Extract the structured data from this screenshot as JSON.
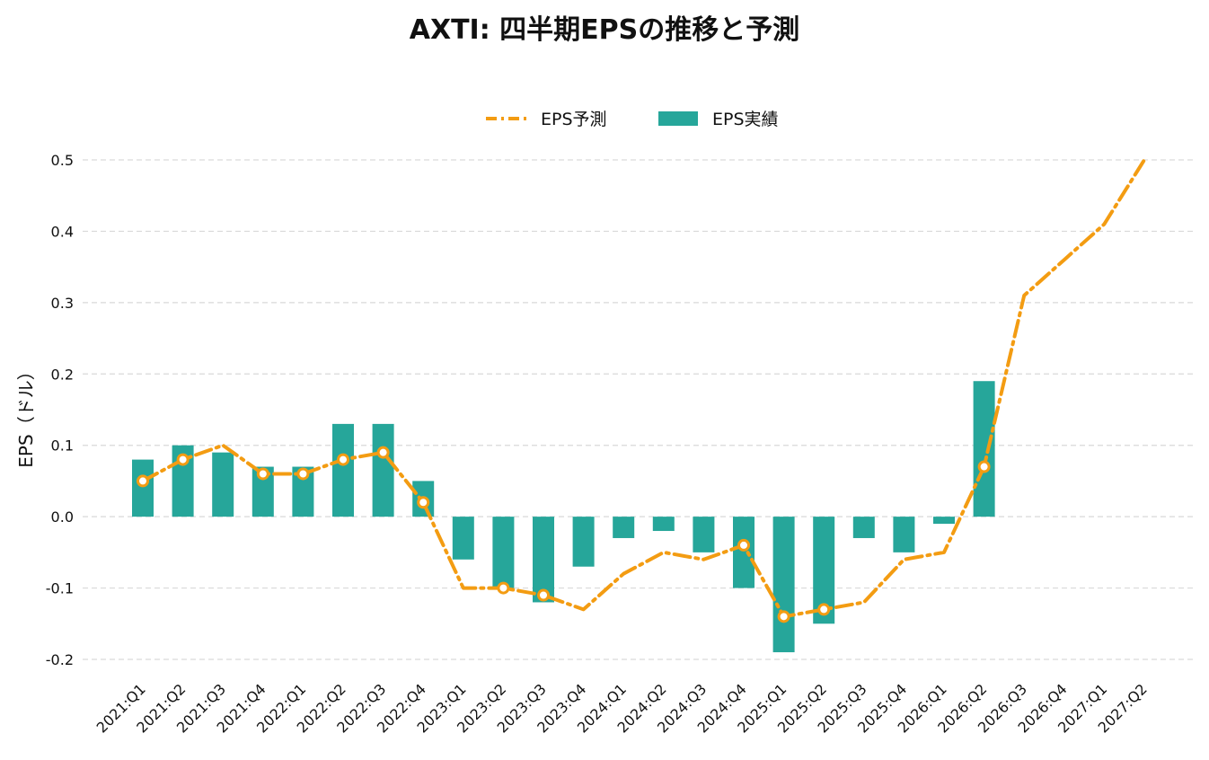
{
  "chart_data": {
    "type": "bar",
    "title": "AXTI: 四半期EPSの推移と予測",
    "ylabel": "EPS（ドル）",
    "xlabel": "",
    "ylim": [
      -0.2,
      0.5
    ],
    "yticks": [
      0.5,
      0.4,
      0.3,
      0.2,
      0.1,
      0.0,
      -0.1,
      -0.2
    ],
    "ytick_labels": [
      "0.5",
      "0.4",
      "0.3",
      "0.2",
      "0.1",
      "0.0",
      "-0.1",
      "-0.2"
    ],
    "grid": true,
    "legend_position": "top-center",
    "categories": [
      "2021:Q1",
      "2021:Q2",
      "2021:Q3",
      "2021:Q4",
      "2022:Q1",
      "2022:Q2",
      "2022:Q3",
      "2022:Q4",
      "2023:Q1",
      "2023:Q2",
      "2023:Q3",
      "2023:Q4",
      "2024:Q1",
      "2024:Q2",
      "2024:Q3",
      "2024:Q4",
      "2025:Q1",
      "2025:Q2",
      "2025:Q3",
      "2025:Q4",
      "2026:Q1",
      "2026:Q2",
      "2026:Q3",
      "2026:Q4",
      "2027:Q1",
      "2027:Q2"
    ],
    "series": [
      {
        "name": "EPS予測",
        "kind": "line",
        "color": "#F39C12",
        "values": [
          0.05,
          0.08,
          0.1,
          0.06,
          0.06,
          0.08,
          0.09,
          0.02,
          -0.1,
          -0.1,
          -0.11,
          -0.13,
          -0.08,
          -0.05,
          -0.06,
          -0.04,
          -0.14,
          -0.13,
          -0.12,
          -0.06,
          -0.05,
          0.07,
          0.31,
          0.36,
          0.41,
          0.5
        ],
        "marked_points": [
          0,
          1,
          3,
          4,
          5,
          6,
          7,
          9,
          10,
          15,
          16,
          17,
          21
        ]
      },
      {
        "name": "EPS実績",
        "kind": "bar",
        "color": "#26A69A",
        "values": [
          0.08,
          0.1,
          0.09,
          0.07,
          0.07,
          0.13,
          0.13,
          0.05,
          -0.06,
          -0.1,
          -0.12,
          -0.07,
          -0.03,
          -0.02,
          -0.05,
          -0.1,
          -0.19,
          -0.15,
          -0.03,
          -0.05,
          -0.01,
          0.19,
          null,
          null,
          null,
          null
        ]
      }
    ]
  }
}
